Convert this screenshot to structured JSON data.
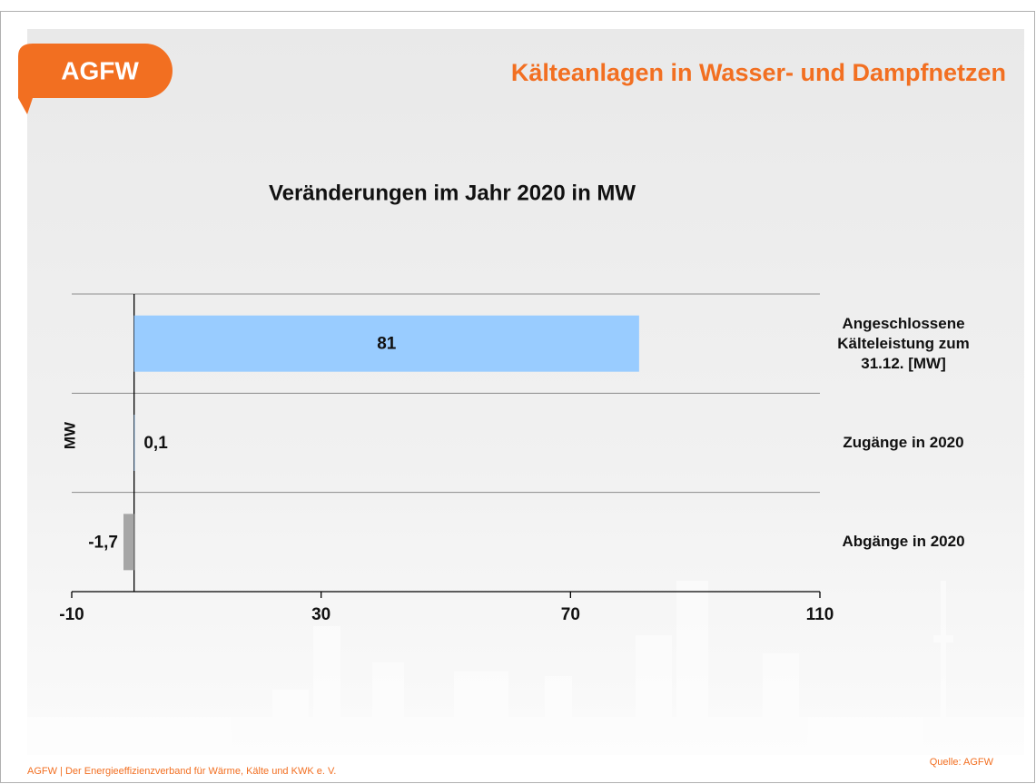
{
  "logo": "AGFW",
  "chart_data": {
    "type": "barh",
    "title": "Kälteanlagen in Wasser- und Dampfnetzen",
    "subtitle": "Veränderungen im Jahr 2020 in MW",
    "y_label": "MW",
    "categories": [
      "Angeschlossene Kälteleistung zum 31.12. [MW]",
      "Zugänge in 2020",
      "Abgänge in 2020"
    ],
    "values": [
      81,
      0.1,
      -1.7
    ],
    "value_labels": [
      "81",
      "0,1",
      "-1,7"
    ],
    "colors": [
      "#99ccff",
      "#99ccff",
      "#a6a6a6"
    ],
    "xlim": [
      -10,
      110
    ],
    "xticks": [
      -10,
      30,
      70,
      110
    ]
  },
  "footer": {
    "left": "AGFW | Der Energieeffizienzverband für Wärme, Kälte und KWK e. V.",
    "source": "Quelle: AGFW"
  }
}
